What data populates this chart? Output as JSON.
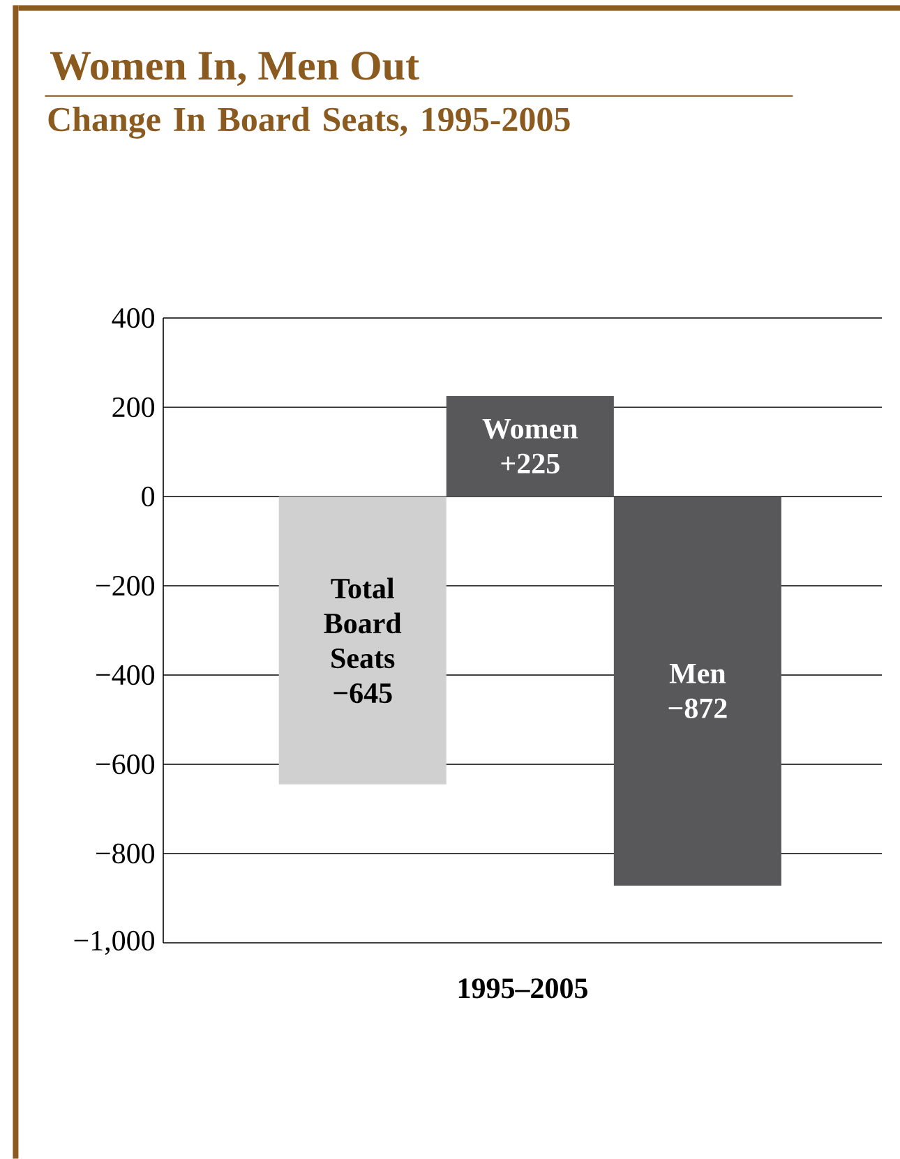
{
  "chart_data": {
    "type": "bar",
    "title": "Women In, Men Out",
    "subtitle": "Change In Board Seats, 1995-2005",
    "xlabel": "1995–2005",
    "categories": [
      "Total Board Seats",
      "Women",
      "Men"
    ],
    "values": [
      -645,
      225,
      -872
    ],
    "value_labels": [
      "−645",
      "+225",
      "−872"
    ],
    "colors": [
      "#d0d0d1",
      "#58585a",
      "#58585a"
    ],
    "ylim": [
      -1000,
      400
    ],
    "yticks": [
      {
        "value": -1000,
        "label": "−1,000"
      },
      {
        "value": -800,
        "label": "−800"
      },
      {
        "value": -600,
        "label": "−600"
      },
      {
        "value": -400,
        "label": "−400"
      },
      {
        "value": -200,
        "label": "−200"
      },
      0,
      200,
      400
    ],
    "grid": "y"
  }
}
